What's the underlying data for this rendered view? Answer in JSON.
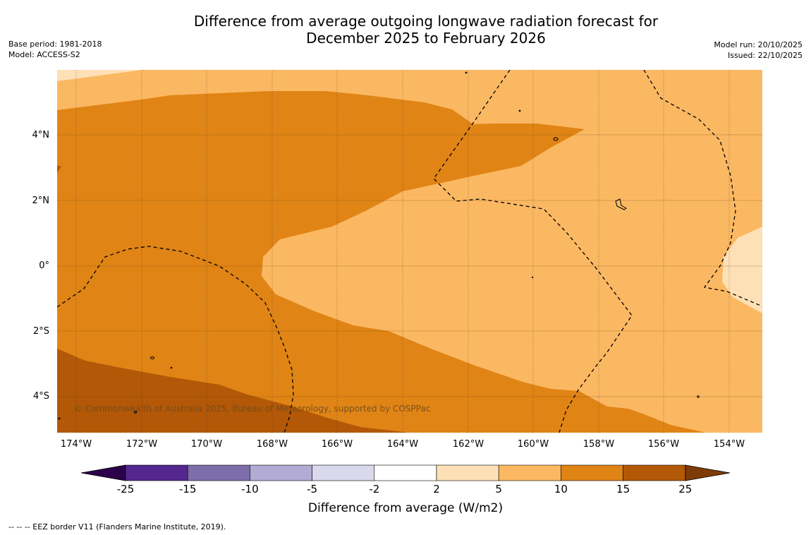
{
  "title": {
    "line1": "Difference from average outgoing longwave radiation forecast for",
    "line2": "December 2025 to February 2026"
  },
  "meta_left": {
    "base_period": "Base period: 1981-2018",
    "model": "Model: ACCESS-S2"
  },
  "meta_right": {
    "model_run": "Model run: 20/10/2025",
    "issued": "Issued: 22/10/2025"
  },
  "map": {
    "latitude_labels": [
      "4°N",
      "2°N",
      "0°",
      "2°S",
      "4°S"
    ],
    "longitude_labels": [
      "174°W",
      "172°W",
      "170°W",
      "168°W",
      "166°W",
      "164°W",
      "162°W",
      "160°W",
      "158°W",
      "156°W",
      "154°W"
    ],
    "copyright": "© Commonwealth of Australia 2025, Bureau of Meteorology, supported by COSPPac"
  },
  "colorbar": {
    "title": "Difference from average (W/m2)",
    "labels": [
      "-25",
      "-15",
      "-10",
      "-5",
      "-2",
      "2",
      "5",
      "10",
      "15",
      "25"
    ],
    "colors": [
      "#54278f",
      "#7d6eab",
      "#b2abd4",
      "#d9d9eb",
      "#ffffff",
      "#fde0b6",
      "#fbb862",
      "#e08415",
      "#b35807"
    ],
    "under_color": "#2d004b",
    "over_color": "#7f3b08"
  },
  "footnote": "--  --  -- EEZ border V11 (Flanders Marine Institute, 2019).",
  "colors": {
    "band_5_10": "#fbb862",
    "band_2_5": "#fde0b6",
    "band_10_15": "#e08415",
    "band_15_25": "#b35807"
  }
}
